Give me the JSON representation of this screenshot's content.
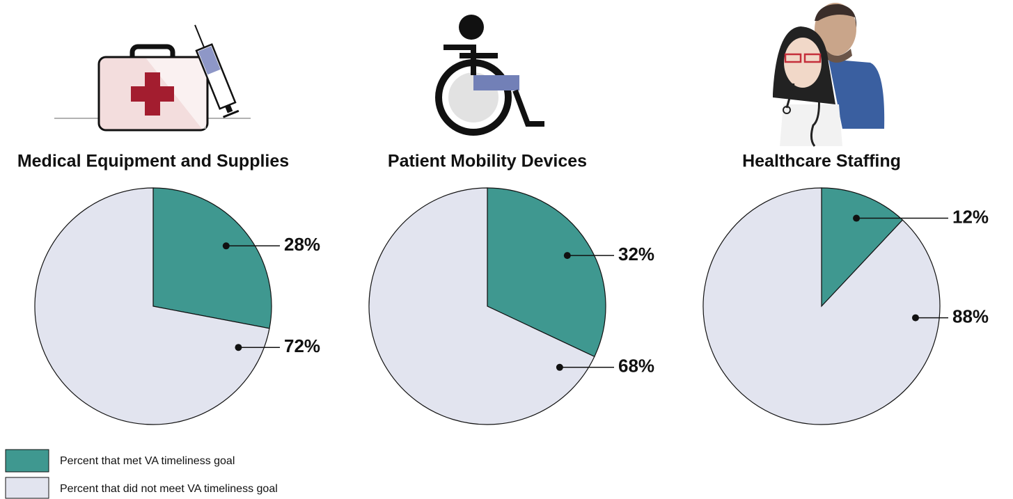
{
  "chart_data": [
    {
      "type": "pie",
      "title": "Medical Equipment and Supplies",
      "values": [
        28,
        72
      ],
      "value_labels": [
        "28%",
        "72%"
      ]
    },
    {
      "type": "pie",
      "title": "Patient Mobility Devices",
      "values": [
        32,
        68
      ],
      "value_labels": [
        "32%",
        "68%"
      ]
    },
    {
      "type": "pie",
      "title": "Healthcare Staffing",
      "values": [
        12,
        88
      ],
      "value_labels": [
        "12%",
        "88%"
      ]
    }
  ],
  "legend": {
    "items": [
      {
        "name": "Percent that met VA timeliness goal",
        "color": "#3f9890"
      },
      {
        "name": "Percent that did not meet VA timeliness goal",
        "color": "#e2e4ef"
      }
    ]
  }
}
